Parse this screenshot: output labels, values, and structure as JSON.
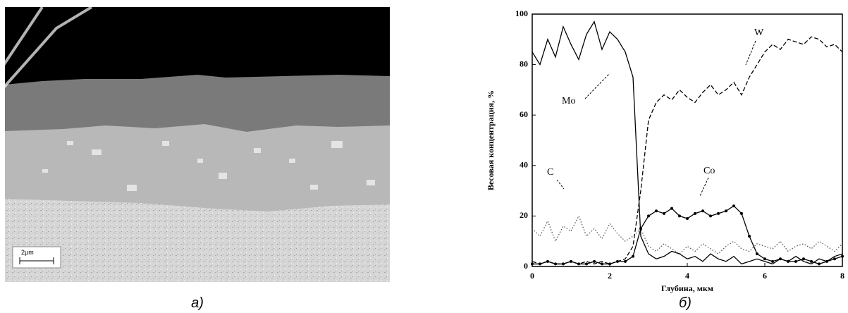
{
  "figure": {
    "caption_a": "а)",
    "caption_b": "б)",
    "scale_bar": "2µm"
  },
  "chart_data": {
    "type": "line",
    "xlabel": "Глубина, мкм",
    "ylabel": "Весовая концентрация, %",
    "annotations": [
      "W",
      "Mo",
      "C",
      "Co"
    ],
    "x": [
      0,
      0.2,
      0.4,
      0.6,
      0.8,
      1,
      1.2,
      1.4,
      1.6,
      1.8,
      2,
      2.2,
      2.4,
      2.6,
      2.8,
      3,
      3.2,
      3.4,
      3.6,
      3.8,
      4,
      4.2,
      4.4,
      4.6,
      4.8,
      5,
      5.2,
      5.4,
      5.6,
      5.8,
      6,
      6.2,
      6.4,
      6.6,
      6.8,
      7,
      7.2,
      7.4,
      7.6,
      7.8,
      8
    ],
    "series": [
      {
        "name": "Mo",
        "color": "#000000",
        "style": "solid",
        "values": [
          85,
          80,
          90,
          83,
          95,
          88,
          82,
          92,
          97,
          86,
          93,
          90,
          85,
          75,
          12,
          5,
          3,
          4,
          6,
          5,
          3,
          4,
          2,
          5,
          3,
          2,
          4,
          1,
          2,
          3,
          2,
          1,
          3,
          2,
          4,
          2,
          1,
          3,
          2,
          4,
          5
        ]
      },
      {
        "name": "W",
        "color": "#000000",
        "style": "dashed",
        "values": [
          2,
          1,
          2,
          1,
          1,
          2,
          1,
          2,
          1,
          2,
          1,
          2,
          3,
          8,
          30,
          58,
          65,
          68,
          66,
          70,
          67,
          65,
          69,
          72,
          68,
          70,
          73,
          68,
          75,
          80,
          85,
          88,
          86,
          90,
          89,
          88,
          91,
          90,
          87,
          88,
          85
        ]
      },
      {
        "name": "C",
        "color": "#555555",
        "style": "dotted",
        "values": [
          15,
          12,
          18,
          10,
          16,
          14,
          20,
          12,
          15,
          11,
          17,
          13,
          10,
          12,
          15,
          8,
          6,
          9,
          7,
          5,
          8,
          6,
          9,
          7,
          5,
          8,
          10,
          7,
          6,
          9,
          8,
          7,
          10,
          6,
          8,
          9,
          7,
          10,
          8,
          6,
          9
        ]
      },
      {
        "name": "Co",
        "color": "#000000",
        "style": "solid",
        "marker": true,
        "values": [
          1,
          1,
          2,
          1,
          1,
          2,
          1,
          1,
          2,
          1,
          1,
          2,
          2,
          4,
          15,
          20,
          22,
          21,
          23,
          20,
          19,
          21,
          22,
          20,
          21,
          22,
          24,
          21,
          12,
          5,
          3,
          2,
          3,
          2,
          2,
          3,
          2,
          1,
          2,
          3,
          4
        ]
      }
    ],
    "xlim": [
      0,
      8
    ],
    "xticks": [
      0,
      2,
      4,
      6,
      8
    ],
    "ylim": [
      0,
      100
    ],
    "yticks": [
      0,
      20,
      40,
      60,
      80,
      100
    ]
  }
}
